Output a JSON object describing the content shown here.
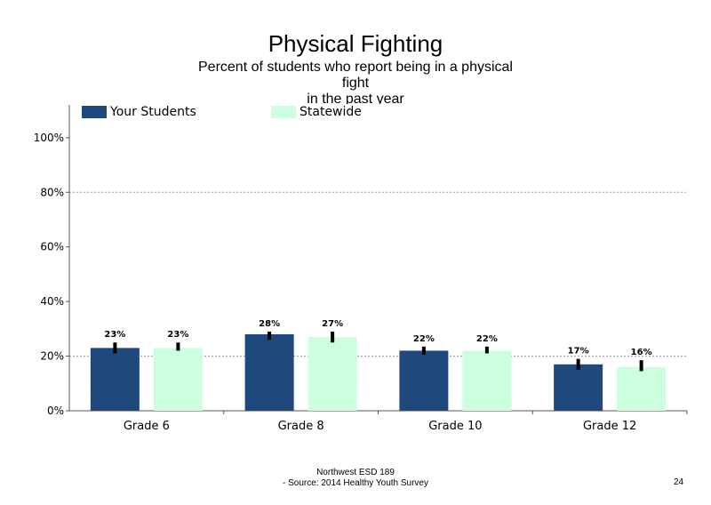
{
  "chart_data": {
    "type": "bar",
    "title": "Physical Fighting",
    "subtitle_lines": [
      "Percent of students  who report being in a physical",
      "fight",
      "in the past year"
    ],
    "categories": [
      "Grade 6",
      "Grade 8",
      "Grade 10",
      "Grade 12"
    ],
    "series": [
      {
        "name": "Your Students",
        "color": "#1f497d",
        "values": [
          23,
          28,
          22,
          17
        ],
        "labels": [
          "23%",
          "28%",
          "22%",
          "17%"
        ],
        "error_low": [
          21,
          26,
          20.5,
          15
        ],
        "error_high": [
          25,
          29,
          23.5,
          19
        ]
      },
      {
        "name": "Statewide",
        "color": "#ccffdd",
        "values": [
          23,
          27,
          22,
          16
        ],
        "labels": [
          "23%",
          "27%",
          "22%",
          "16%"
        ],
        "error_low": [
          22,
          25,
          21,
          14.5
        ],
        "error_high": [
          25,
          29,
          23.5,
          18.5
        ]
      }
    ],
    "y_ticks": [
      0,
      20,
      40,
      60,
      80,
      100
    ],
    "y_tick_labels": [
      "0%",
      "20%",
      "40%",
      "60%",
      "80%",
      "100%"
    ],
    "ylim": [
      0,
      112
    ],
    "grid": "dotted horizontal at 20% and 80%",
    "legend": "top",
    "error_bar_color": "#000000"
  },
  "footer": {
    "line1": "Northwest ESD  189",
    "line2": "- Source: 2014 Healthy  Youth Survey"
  },
  "page_number": "24"
}
